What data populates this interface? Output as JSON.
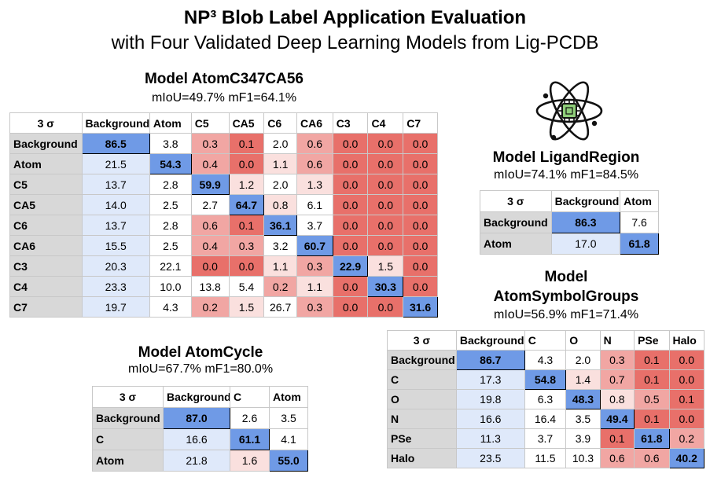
{
  "title": "NP³ Blob Label Application Evaluation",
  "subtitle": "with Four Validated Deep Learning Models from Lig-PCDB",
  "colors": {
    "good": "#6f9ae6",
    "bad": "#e8706a",
    "neutral": "#ffffff"
  },
  "icons": {
    "logo": "atom-chip-icon"
  },
  "chart_data": [
    {
      "type": "heatmap",
      "title": "Model AtomC347CA56",
      "subtitle": "mIoU=49.7%  mF1=64.1%",
      "corner": "3 σ",
      "columns": [
        "Background",
        "Atom",
        "C5",
        "CA5",
        "C6",
        "CA6",
        "C3",
        "C4",
        "C7"
      ],
      "rows": [
        "Background",
        "Atom",
        "C5",
        "CA5",
        "C6",
        "CA6",
        "C3",
        "C4",
        "C7"
      ],
      "values": [
        [
          86.5,
          3.8,
          0.3,
          0.1,
          2.0,
          0.6,
          0.0,
          0.0,
          0.0
        ],
        [
          21.5,
          54.3,
          0.4,
          0.0,
          1.1,
          0.6,
          0.0,
          0.0,
          0.0
        ],
        [
          13.7,
          2.8,
          59.9,
          1.2,
          2.0,
          1.3,
          0.0,
          0.0,
          0.0
        ],
        [
          14.0,
          2.5,
          2.7,
          64.7,
          0.8,
          6.1,
          0.0,
          0.0,
          0.0
        ],
        [
          13.7,
          2.8,
          0.6,
          0.1,
          36.1,
          3.7,
          0.0,
          0.0,
          0.0
        ],
        [
          15.5,
          2.5,
          0.4,
          0.3,
          3.2,
          60.7,
          0.0,
          0.0,
          0.0
        ],
        [
          20.3,
          22.1,
          0.0,
          0.0,
          1.1,
          0.3,
          22.9,
          1.5,
          0.0
        ],
        [
          23.3,
          10.0,
          13.8,
          5.4,
          0.2,
          1.1,
          0.0,
          30.3,
          0.0
        ],
        [
          19.7,
          4.3,
          0.2,
          1.5,
          26.7,
          0.3,
          0.0,
          0.0,
          31.6
        ]
      ]
    },
    {
      "type": "heatmap",
      "title": "Model LigandRegion",
      "subtitle": "mIoU=74.1%  mF1=84.5%",
      "corner": "3 σ",
      "columns": [
        "Background",
        "Atom"
      ],
      "rows": [
        "Background",
        "Atom"
      ],
      "values": [
        [
          86.3,
          7.6
        ],
        [
          17.0,
          61.8
        ]
      ]
    },
    {
      "type": "heatmap",
      "title": "Model AtomCycle",
      "subtitle": "mIoU=67.7%  mF1=80.0%",
      "corner": "3 σ",
      "columns": [
        "Background",
        "C",
        "Atom"
      ],
      "rows": [
        "Background",
        "C",
        "Atom"
      ],
      "values": [
        [
          87.0,
          2.6,
          3.5
        ],
        [
          16.6,
          61.1,
          4.1
        ],
        [
          21.8,
          1.6,
          55.0
        ]
      ]
    },
    {
      "type": "heatmap",
      "title_line1": "Model",
      "title_line2": "AtomSymbolGroups",
      "subtitle": "mIoU=56.9%  mF1=71.4%",
      "corner": "3 σ",
      "columns": [
        "Background",
        "C",
        "O",
        "N",
        "PSe",
        "Halo"
      ],
      "rows": [
        "Background",
        "C",
        "O",
        "N",
        "PSe",
        "Halo"
      ],
      "values": [
        [
          86.7,
          4.3,
          2.0,
          0.3,
          0.1,
          0.0
        ],
        [
          17.3,
          54.8,
          1.4,
          0.7,
          0.1,
          0.0
        ],
        [
          19.8,
          6.3,
          48.3,
          0.8,
          0.5,
          0.1
        ],
        [
          16.6,
          16.4,
          3.5,
          49.4,
          0.1,
          0.0
        ],
        [
          11.3,
          3.7,
          3.9,
          0.1,
          61.8,
          0.2
        ],
        [
          23.5,
          11.5,
          10.3,
          0.6,
          0.6,
          40.2
        ]
      ]
    }
  ]
}
